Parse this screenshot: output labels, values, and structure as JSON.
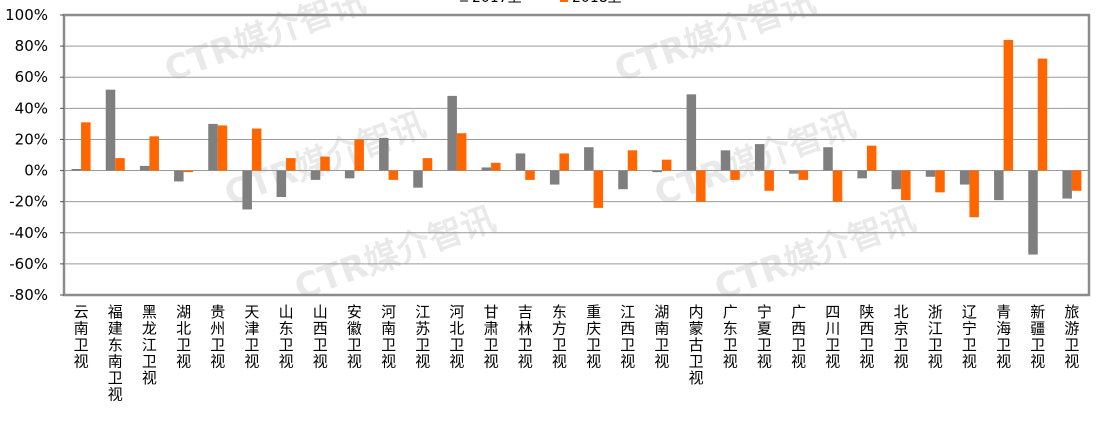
{
  "chart_data": {
    "type": "bar",
    "title": "",
    "xlabel": "",
    "ylabel": "",
    "ylim": [
      -80,
      100
    ],
    "y_step": 20,
    "y_tick_suffix": "%",
    "grid": true,
    "legend_position": "top-center",
    "categories": [
      "云南卫视",
      "福建东南卫视",
      "黑龙江卫视",
      "湖北卫视",
      "贵州卫视",
      "天津卫视",
      "山东卫视",
      "山西卫视",
      "安徽卫视",
      "河南卫视",
      "江苏卫视",
      "河北卫视",
      "甘肃卫视",
      "吉林卫视",
      "东方卫视",
      "重庆卫视",
      "江西卫视",
      "湖南卫视",
      "内蒙古卫视",
      "广东卫视",
      "宁夏卫视",
      "广西卫视",
      "四川卫视",
      "陕西卫视",
      "北京卫视",
      "浙江卫视",
      "辽宁卫视",
      "青海卫视",
      "新疆卫视",
      "旅游卫视"
    ],
    "series": [
      {
        "name": "2017上",
        "color": "#7f7f7f",
        "values": [
          1,
          52,
          3,
          -7,
          30,
          -25,
          -17,
          -6,
          -5,
          21,
          -11,
          48,
          2,
          11,
          -9,
          15,
          -12,
          -1,
          49,
          13,
          17,
          -2,
          15,
          -5,
          -12,
          -4,
          -9,
          -19,
          -54,
          -18
        ]
      },
      {
        "name": "2018上",
        "color": "#ff6600",
        "values": [
          31,
          8,
          22,
          -1,
          29,
          27,
          8,
          9,
          20,
          -6,
          8,
          24,
          5,
          -6,
          11,
          -24,
          13,
          7,
          -20,
          -6,
          -13,
          -6,
          -20,
          16,
          -19,
          -14,
          -30,
          84,
          72,
          -13
        ]
      }
    ]
  },
  "watermark": "CTR媒介智讯"
}
